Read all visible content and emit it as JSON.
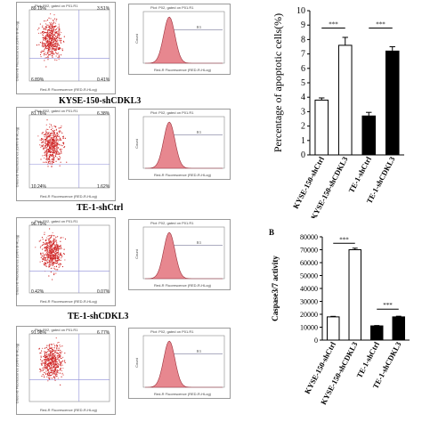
{
  "flow_rows": [
    {
      "caption": "",
      "dot_header": "Plot: P02, gated on P01.R1",
      "q_ul": "89.19%",
      "q_ur": "3.51%",
      "q_ll": "6.89%",
      "q_lr": "0.41%",
      "hist_header": "Plot: P02, gated on P01.R1",
      "gate": "R3",
      "x_axis": "Red-R Fluorescence (RED-R-HLog)",
      "y_axis": "Green-B Fluorescence (GRN-B-HLog)",
      "hist_y": "Count"
    },
    {
      "caption": "KYSE-150-shCDKL3",
      "dot_header": "Plot: P02, gated on P01.R1",
      "q_ul": "81.76%",
      "q_ur": "6.38%",
      "q_ll": "10.24%",
      "q_lr": "1.62%",
      "hist_header": "Plot: P02, gated on P01.R1",
      "gate": "R3",
      "x_axis": "Red-R Fluorescence (RED-R-HLog)",
      "y_axis": "Green-B Fluorescence (GRN-B-HLog)",
      "hist_y": "Count"
    },
    {
      "caption": "TE-1-shCtrl",
      "dot_header": "Plot: P02, gated on P01.R1",
      "q_ul": "96.79%",
      "q_ur": "",
      "q_ll": "0.42%",
      "q_lr": "0.07%",
      "hist_header": "Plot: P02, gated on P01.R1",
      "gate": "R3",
      "x_axis": "Red-R Fluorescence (RED-R-HLog)",
      "y_axis": "Green-B Fluorescence (GRN-B-HLog)",
      "hist_y": "Count"
    },
    {
      "caption": "TE-1-shCDKL3",
      "dot_header": "Plot: P02, gated on P01.R1",
      "q_ul": "91.98%",
      "q_ur": "6.77%",
      "q_ll": "",
      "q_lr": "",
      "hist_header": "Plot: P02, gated on P01.R1",
      "gate": "R3",
      "x_axis": "Red-R Fluorescence (RED-R-HLog)",
      "y_axis": "Green-B Fluorescence (GRN-B-HLog)",
      "hist_y": "Count"
    }
  ],
  "chart_data": [
    {
      "type": "bar",
      "panel_label": "",
      "title": "",
      "xlabel": "",
      "ylabel": "Percentage of apoptotic cells(%)",
      "ylim": [
        0,
        10
      ],
      "ticks": [
        "0",
        "1",
        "2",
        "3",
        "4",
        "5",
        "6",
        "7",
        "8",
        "9",
        "10"
      ],
      "categories": [
        "KYSE-150-shCtrl",
        "KYSE-150-shCDKL3",
        "TE-1-shCtrl",
        "TE-1-shCDKL3"
      ],
      "values": [
        3.8,
        7.6,
        2.7,
        7.2
      ],
      "errors": [
        0.15,
        0.55,
        0.25,
        0.3
      ],
      "fills": [
        "#ffffff",
        "#ffffff",
        "#000000",
        "#000000"
      ],
      "significance": [
        {
          "from": 0,
          "to": 1,
          "label": "***",
          "y": 8.8
        },
        {
          "from": 2,
          "to": 3,
          "label": "***",
          "y": 8.8
        }
      ]
    },
    {
      "type": "bar",
      "panel_label": "B",
      "title": "",
      "xlabel": "",
      "ylabel": "Caspase3/7 activity",
      "ylim": [
        0,
        80000
      ],
      "ticks": [
        "0",
        "10000",
        "20000",
        "30000",
        "40000",
        "50000",
        "60000",
        "70000",
        "80000"
      ],
      "categories": [
        "KYSE-150-shCtrl",
        "KYSE-150-shCDKL3",
        "TE-1-shCtrl",
        "TE-1-shCDKL3"
      ],
      "values": [
        18000,
        70000,
        11000,
        18000
      ],
      "errors": [
        400,
        1200,
        300,
        500
      ],
      "fills": [
        "#ffffff",
        "#ffffff",
        "#000000",
        "#000000"
      ],
      "significance": [
        {
          "from": 0,
          "to": 1,
          "label": "***",
          "y": 75000
        },
        {
          "from": 2,
          "to": 3,
          "label": "***",
          "y": 24000
        }
      ]
    }
  ]
}
